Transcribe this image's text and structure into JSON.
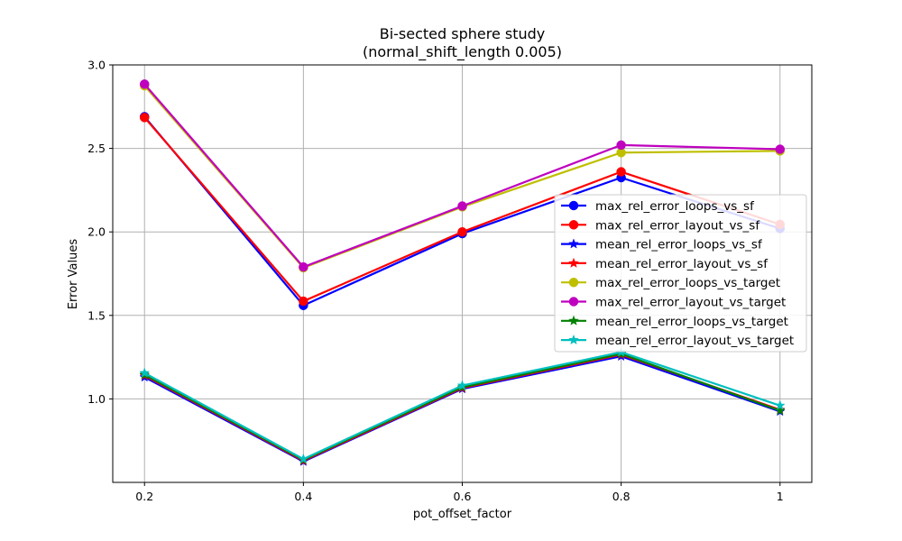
{
  "chart_data": {
    "type": "line",
    "title": "Bi-sected sphere study",
    "subtitle": "(normal_shift_length 0.005)",
    "xlabel": "pot_offset_factor",
    "ylabel": "Error Values",
    "x": [
      0.2,
      0.4,
      0.6,
      0.8,
      1.0
    ],
    "x_tick_labels": [
      "0.2",
      "0.4",
      "0.6",
      "0.8",
      "1"
    ],
    "y_ticks": [
      1.0,
      1.5,
      2.0,
      2.5,
      3.0
    ],
    "y_tick_labels": [
      "1.0",
      "1.5",
      "2.0",
      "2.5",
      "3.0"
    ],
    "xlim": [
      0.16,
      1.04
    ],
    "ylim": [
      0.5,
      3.0
    ],
    "grid": true,
    "legend_position": "center-right",
    "series": [
      {
        "name": "max_rel_error_loops_vs_sf",
        "color": "#0000ff",
        "marker": "circle",
        "values": [
          2.69,
          1.56,
          1.99,
          2.325,
          2.02
        ]
      },
      {
        "name": "max_rel_error_layout_vs_sf",
        "color": "#ff0000",
        "marker": "circle",
        "values": [
          2.685,
          1.585,
          2.0,
          2.36,
          2.045
        ]
      },
      {
        "name": "mean_rel_error_loops_vs_sf",
        "color": "#0000ff",
        "marker": "star",
        "values": [
          1.13,
          0.625,
          1.06,
          1.255,
          0.925
        ]
      },
      {
        "name": "mean_rel_error_layout_vs_sf",
        "color": "#ff0000",
        "marker": "star",
        "values": [
          1.14,
          0.63,
          1.065,
          1.265,
          0.935
        ]
      },
      {
        "name": "max_rel_error_loops_vs_target",
        "color": "#bfbf00",
        "marker": "circle",
        "values": [
          2.875,
          1.785,
          2.15,
          2.475,
          2.485
        ]
      },
      {
        "name": "max_rel_error_layout_vs_target",
        "color": "#bf00bf",
        "marker": "circle",
        "values": [
          2.885,
          1.79,
          2.155,
          2.52,
          2.495
        ]
      },
      {
        "name": "mean_rel_error_loops_vs_target",
        "color": "#008000",
        "marker": "star",
        "values": [
          1.145,
          0.635,
          1.07,
          1.27,
          0.93
        ]
      },
      {
        "name": "mean_rel_error_layout_vs_target",
        "color": "#00bfbf",
        "marker": "star",
        "values": [
          1.155,
          0.64,
          1.08,
          1.28,
          0.96
        ]
      }
    ]
  }
}
